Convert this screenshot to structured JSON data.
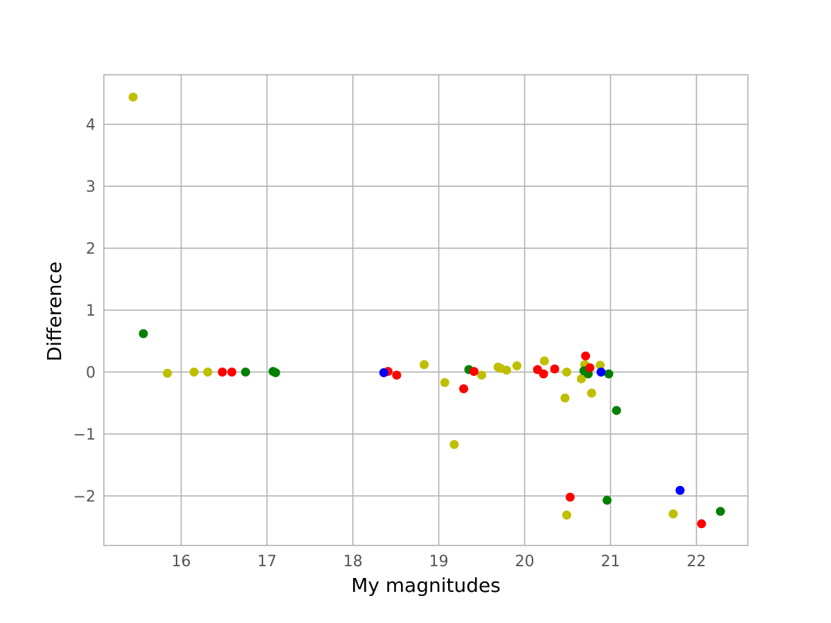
{
  "chart_data": {
    "type": "scatter",
    "title": "",
    "xlabel": "My magnitudes",
    "ylabel": "Difference",
    "xlim": [
      15.1,
      22.6
    ],
    "ylim": [
      -2.8,
      4.8
    ],
    "xticks": [
      16,
      17,
      18,
      19,
      20,
      21,
      22
    ],
    "yticks": [
      -2,
      -1,
      0,
      1,
      2,
      3,
      4
    ],
    "xtick_labels": [
      "16",
      "17",
      "18",
      "19",
      "20",
      "21",
      "22"
    ],
    "ytick_labels": [
      "−2",
      "−1",
      "0",
      "1",
      "2",
      "3",
      "4"
    ],
    "grid": true,
    "legend": "none",
    "series": [
      {
        "color": "#bfbf00",
        "points": [
          [
            15.44,
            4.44
          ],
          [
            15.84,
            -0.02
          ],
          [
            16.15,
            0.0
          ],
          [
            16.31,
            0.0
          ],
          [
            18.83,
            0.12
          ],
          [
            19.07,
            -0.17
          ],
          [
            19.18,
            -1.17
          ],
          [
            19.5,
            -0.05
          ],
          [
            19.69,
            0.08
          ],
          [
            19.72,
            0.06
          ],
          [
            19.79,
            0.03
          ],
          [
            19.91,
            0.1
          ],
          [
            20.23,
            0.18
          ],
          [
            20.47,
            -0.42
          ],
          [
            20.49,
            -2.31
          ],
          [
            20.49,
            0.0
          ],
          [
            20.66,
            -0.11
          ],
          [
            20.7,
            0.12
          ],
          [
            20.78,
            -0.34
          ],
          [
            20.88,
            0.11
          ],
          [
            21.73,
            -2.29
          ]
        ]
      },
      {
        "color": "#008000",
        "points": [
          [
            15.56,
            0.62
          ],
          [
            16.75,
            0.0
          ],
          [
            17.07,
            0.01
          ],
          [
            17.1,
            -0.01
          ],
          [
            19.35,
            0.04
          ],
          [
            20.69,
            0.02
          ],
          [
            20.74,
            -0.03
          ],
          [
            20.96,
            -2.07
          ],
          [
            20.98,
            -0.03
          ],
          [
            21.07,
            -0.62
          ],
          [
            22.28,
            -2.25
          ]
        ]
      },
      {
        "color": "#ff0000",
        "points": [
          [
            16.48,
            0.0
          ],
          [
            16.59,
            0.0
          ],
          [
            18.41,
            0.01
          ],
          [
            18.51,
            -0.05
          ],
          [
            19.29,
            -0.27
          ],
          [
            19.41,
            0.01
          ],
          [
            20.15,
            0.04
          ],
          [
            20.22,
            -0.03
          ],
          [
            20.35,
            0.05
          ],
          [
            20.53,
            -2.02
          ],
          [
            20.71,
            0.26
          ],
          [
            20.76,
            0.07
          ],
          [
            22.06,
            -2.45
          ]
        ]
      },
      {
        "color": "#0000ff",
        "points": [
          [
            18.36,
            -0.01
          ],
          [
            20.89,
            0.0
          ],
          [
            21.81,
            -1.91
          ]
        ]
      }
    ]
  }
}
